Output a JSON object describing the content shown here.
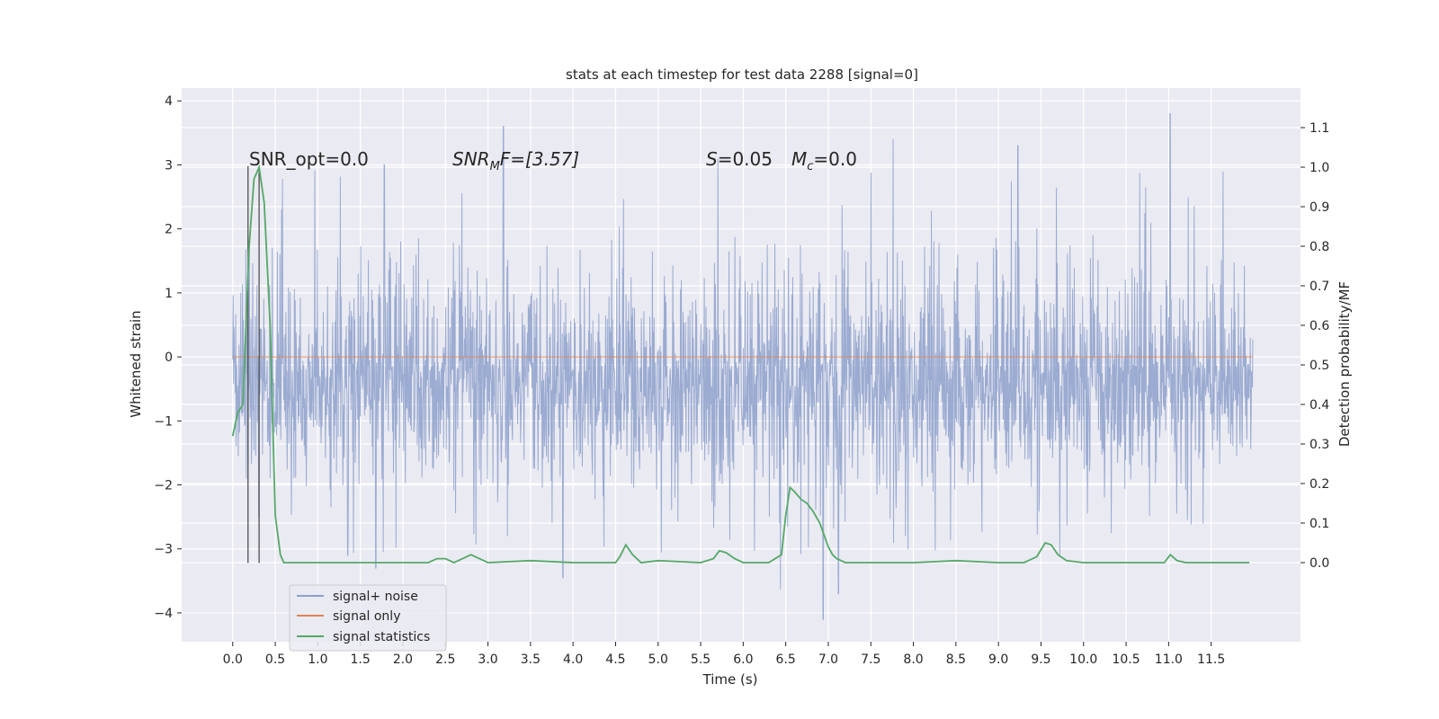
{
  "chart_data": {
    "type": "line",
    "title": "stats at each timestep for test data 2288 [signal=0]",
    "xlabel": "Time (s)",
    "ylabel": "Whitened strain",
    "ylabel_right": "Detection probability/MF",
    "xlim": [
      -0.6,
      12.55
    ],
    "ylim": [
      -4.45,
      4.2
    ],
    "ylim_right": [
      -0.2,
      1.2
    ],
    "x_ticks": [
      0.0,
      0.5,
      1.0,
      1.5,
      2.0,
      2.5,
      3.0,
      3.5,
      4.0,
      4.5,
      5.0,
      5.5,
      6.0,
      6.5,
      7.0,
      7.5,
      8.0,
      8.5,
      9.0,
      9.5,
      10.0,
      10.5,
      11.0,
      11.5
    ],
    "x_tick_labels": [
      "0.0",
      "0.5",
      "1.0",
      "1.5",
      "2.0",
      "2.5",
      "3.0",
      "3.5",
      "4.0",
      "4.5",
      "5.0",
      "5.5",
      "6.0",
      "6.5",
      "7.0",
      "7.5",
      "8.0",
      "8.5",
      "9.0",
      "9.5",
      "10.0",
      "10.5",
      "11.0",
      "11.5"
    ],
    "y_ticks": [
      -4,
      -3,
      -2,
      -1,
      0,
      1,
      2,
      3,
      4
    ],
    "y_tick_labels": [
      "−4",
      "−3",
      "−2",
      "−1",
      "0",
      "1",
      "2",
      "3",
      "4"
    ],
    "y_ticks_right": [
      0.0,
      0.1,
      0.2,
      0.3,
      0.4,
      0.5,
      0.6,
      0.7,
      0.8,
      0.9,
      1.0,
      1.1
    ],
    "y_tick_labels_right": [
      "0.0",
      "0.1",
      "0.2",
      "0.3",
      "0.4",
      "0.5",
      "0.6",
      "0.7",
      "0.8",
      "0.9",
      "1.0",
      "1.1"
    ],
    "grid": true,
    "legend_position": "lower-left",
    "annotations": {
      "snr_opt": "SNR_opt=0.0",
      "snr_mf_main": "SNR",
      "snr_mf_sub": "M",
      "snr_mf_rest": "F=[3.57]",
      "s_main": "S",
      "s_rest": "=0.05",
      "mc_main": "M",
      "mc_sub": "c",
      "mc_rest": "=0.0"
    },
    "vlines_x": [
      0.18,
      0.31
    ],
    "series": [
      {
        "name": "signal+ noise",
        "color": "#8da0cb",
        "x_range": [
          0.0,
          11.99
        ],
        "envelope": {
          "typical_high": 1.75,
          "typical_low": -2.0,
          "peaks_max": 3.8,
          "peaks_min": -4.1
        }
      },
      {
        "name": "signal only",
        "color": "#dd8452",
        "x": [
          0.0,
          11.99
        ],
        "values": [
          0.0,
          0.0
        ]
      },
      {
        "name": "signal statistics",
        "color": "#55a868",
        "axis": "right",
        "x": [
          0.0,
          0.06,
          0.12,
          0.19,
          0.25,
          0.31,
          0.37,
          0.44,
          0.5,
          0.56,
          0.6,
          1.0,
          1.5,
          2.0,
          2.3,
          2.4,
          2.5,
          2.6,
          2.8,
          2.9,
          3.0,
          3.5,
          4.0,
          4.5,
          4.55,
          4.62,
          4.7,
          4.8,
          5.0,
          5.5,
          5.65,
          5.72,
          5.8,
          5.9,
          6.0,
          6.3,
          6.45,
          6.5,
          6.55,
          6.6,
          6.68,
          6.75,
          6.82,
          6.9,
          6.95,
          7.0,
          7.05,
          7.1,
          7.2,
          8.0,
          8.5,
          9.0,
          9.3,
          9.45,
          9.55,
          9.62,
          9.7,
          9.8,
          10.0,
          10.5,
          10.95,
          11.02,
          11.1,
          11.2,
          11.5,
          11.95
        ],
        "values": [
          0.32,
          0.38,
          0.4,
          0.79,
          0.97,
          1.0,
          0.91,
          0.6,
          0.12,
          0.02,
          0.0,
          0.0,
          0.0,
          0.0,
          0.0,
          0.01,
          0.01,
          0.0,
          0.02,
          0.01,
          0.0,
          0.005,
          0.0,
          0.0,
          0.015,
          0.045,
          0.02,
          0.0,
          0.005,
          0.0,
          0.01,
          0.03,
          0.025,
          0.01,
          0.0,
          0.0,
          0.02,
          0.12,
          0.19,
          0.18,
          0.16,
          0.15,
          0.13,
          0.1,
          0.07,
          0.04,
          0.02,
          0.01,
          0.0,
          0.0,
          0.005,
          0.0,
          0.0,
          0.015,
          0.05,
          0.045,
          0.02,
          0.005,
          0.0,
          0.0,
          0.0,
          0.02,
          0.005,
          0.0,
          0.0,
          0.0
        ]
      }
    ]
  }
}
